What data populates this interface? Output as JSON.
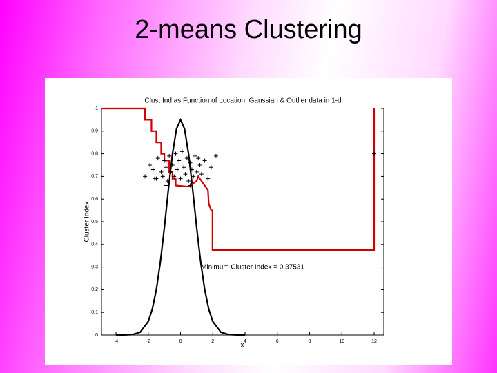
{
  "slide_title": "2-means Clustering",
  "chart_data": {
    "type": "line",
    "title": "Clust Ind as Function of Location, Gaussian & Outlier data in 1-d",
    "x_label": "x",
    "y_label": "Cluster Index",
    "annotation": "Minimum Cluster Index = 0.37531",
    "xlim": [
      -4.9,
      12.6
    ],
    "ylim": [
      0,
      1
    ],
    "xticks": [
      -4,
      -2,
      0,
      2,
      4,
      6,
      8,
      10,
      12
    ],
    "yticks": [
      0,
      0.1,
      0.2,
      0.3,
      0.4,
      0.5,
      0.6,
      0.7,
      0.8,
      0.9,
      1
    ],
    "index_curve": {
      "color": "#d00000",
      "x": [
        -4.9,
        -2.2,
        -2.2,
        -1.8,
        -1.8,
        -1.5,
        -1.5,
        -1.2,
        -1.2,
        -1,
        -1,
        -0.7,
        -0.7,
        -0.5,
        -0.5,
        -0.3,
        -0.3,
        0.5,
        0.8,
        1.0,
        1.1,
        1.3,
        1.5,
        1.7,
        1.75,
        1.9,
        1.98,
        1.98,
        12,
        12
      ],
      "values": [
        1,
        1,
        0.95,
        0.95,
        0.9,
        0.9,
        0.85,
        0.85,
        0.8,
        0.8,
        0.77,
        0.77,
        0.72,
        0.72,
        0.69,
        0.69,
        0.66,
        0.655,
        0.67,
        0.68,
        0.7,
        0.68,
        0.66,
        0.64,
        0.58,
        0.55,
        0.55,
        0.375,
        0.375,
        1
      ]
    },
    "density_curve": {
      "color": "#000000",
      "x": [
        -4,
        -3.5,
        -3,
        -2.5,
        -2,
        -1.75,
        -1.5,
        -1.25,
        -1,
        -0.75,
        -0.5,
        -0.25,
        0,
        0.25,
        0.5,
        0.75,
        1,
        1.25,
        1.5,
        1.75,
        2,
        2.5,
        3,
        3.5,
        4
      ],
      "values": [
        0,
        0.0002,
        0.0019,
        0.0126,
        0.06,
        0.114,
        0.2,
        0.322,
        0.475,
        0.644,
        0.799,
        0.91,
        0.95,
        0.91,
        0.799,
        0.644,
        0.475,
        0.322,
        0.2,
        0.114,
        0.06,
        0.0126,
        0.0019,
        0.0002,
        0
      ]
    },
    "points": {
      "color": "#000000",
      "x": [
        -2.2,
        -1.9,
        -1.7,
        -1.5,
        -1.4,
        -1.2,
        -1.1,
        -1.0,
        -0.9,
        -0.8,
        -0.7,
        -0.6,
        -0.5,
        -0.4,
        -0.3,
        -0.2,
        -0.1,
        0.0,
        0.1,
        0.2,
        0.3,
        0.4,
        0.5,
        0.6,
        0.7,
        0.8,
        0.9,
        1.0,
        1.2,
        1.3,
        1.5,
        1.7,
        1.9,
        2.2,
        -1.6,
        -0.9,
        0.6,
        1.1,
        12
      ],
      "values": [
        0.7,
        0.75,
        0.73,
        0.69,
        0.78,
        0.72,
        0.7,
        0.77,
        0.74,
        0.68,
        0.79,
        0.72,
        0.75,
        0.7,
        0.8,
        0.73,
        0.77,
        0.69,
        0.81,
        0.74,
        0.71,
        0.78,
        0.68,
        0.76,
        0.73,
        0.7,
        0.79,
        0.72,
        0.75,
        0.71,
        0.77,
        0.69,
        0.74,
        0.79,
        0.69,
        0.66,
        0.66,
        0.78,
        0.8
      ]
    }
  }
}
